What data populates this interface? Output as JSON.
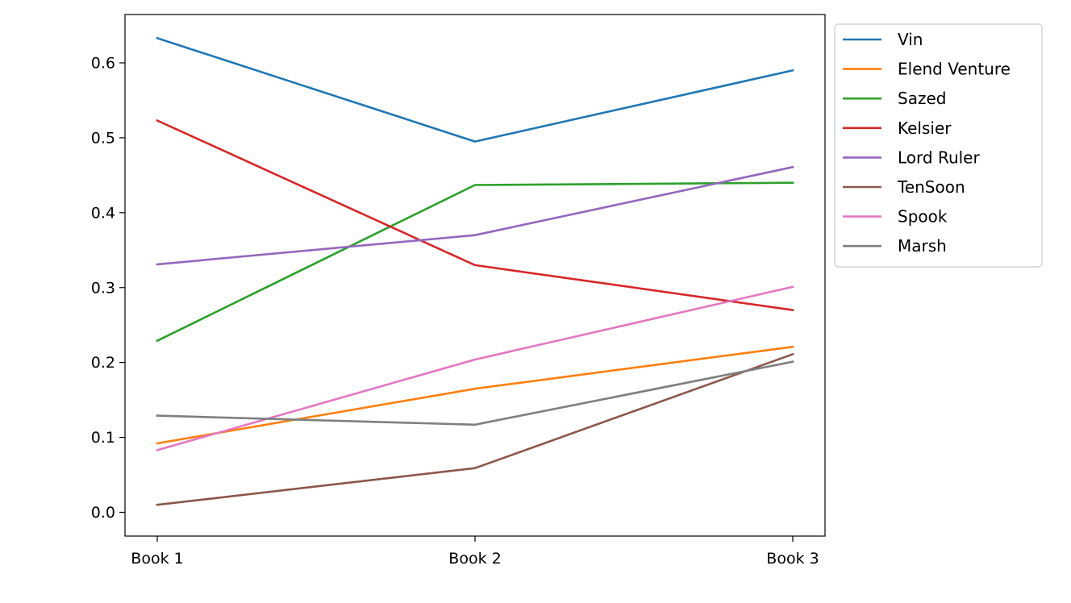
{
  "chart_data": {
    "type": "line",
    "title": "",
    "xlabel": "",
    "ylabel": "",
    "categories": [
      "Book 1",
      "Book 2",
      "Book 3"
    ],
    "ylim": [
      -0.022,
      0.665
    ],
    "yticks": [
      "0.0",
      "0.1",
      "0.2",
      "0.3",
      "0.4",
      "0.5",
      "0.6"
    ],
    "ytick_values": [
      0.0,
      0.1,
      0.2,
      0.3,
      0.4,
      0.5,
      0.6
    ],
    "grid": false,
    "legend_position": "outside-right-top",
    "series": [
      {
        "name": "Vin",
        "color": "#1f77b4",
        "values": [
          0.633,
          0.495,
          0.59
        ]
      },
      {
        "name": "Elend Venture",
        "color": "#ff7f0e",
        "values": [
          0.092,
          0.165,
          0.221
        ]
      },
      {
        "name": "Sazed",
        "color": "#2ca02c",
        "values": [
          0.229,
          0.437,
          0.44
        ]
      },
      {
        "name": "Kelsier",
        "color": "#d62728",
        "values": [
          0.523,
          0.33,
          0.27
        ]
      },
      {
        "name": "Lord Ruler",
        "color": "#9467bd",
        "values": [
          0.331,
          0.37,
          0.461
        ]
      },
      {
        "name": "TenSoon",
        "color": "#8c564b",
        "values": [
          0.01,
          0.059,
          0.211
        ]
      },
      {
        "name": "Spook",
        "color": "#e377c2",
        "values": [
          0.083,
          0.204,
          0.301
        ]
      },
      {
        "name": "Marsh",
        "color": "#7f7f7f",
        "values": [
          0.129,
          0.117,
          0.201
        ]
      }
    ]
  }
}
